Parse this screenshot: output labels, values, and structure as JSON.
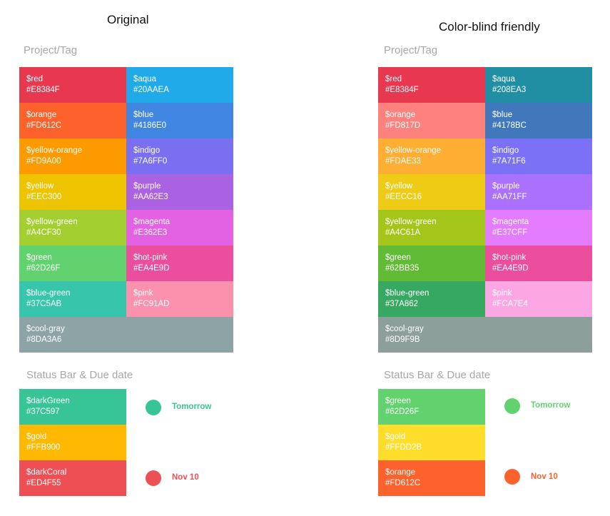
{
  "panels": [
    {
      "heading": "Original",
      "project_label": "Project/Tag",
      "project_colors": [
        {
          "name": "$red",
          "hex": "#E8384F",
          "color": "#E8384F"
        },
        {
          "name": "$aqua",
          "hex": "#20AAEA",
          "color": "#20AAEA"
        },
        {
          "name": "$orange",
          "hex": "#FD612C",
          "color": "#FD612C"
        },
        {
          "name": "$blue",
          "hex": "#4186E0",
          "color": "#4186E0"
        },
        {
          "name": "$yellow-orange",
          "hex": "#FD9A00",
          "color": "#FD9A00"
        },
        {
          "name": "$indigo",
          "hex": "#7A6FF0",
          "color": "#7A6FF0"
        },
        {
          "name": "$yellow",
          "hex": "#EEC300",
          "color": "#EEC300"
        },
        {
          "name": "$purple",
          "hex": "#AA62E3",
          "color": "#AA62E3"
        },
        {
          "name": "$yellow-green",
          "hex": "#A4CF30",
          "color": "#A4CF30"
        },
        {
          "name": "$magenta",
          "hex": "#E362E3",
          "color": "#E362E3"
        },
        {
          "name": "$green",
          "hex": "#62D26F",
          "color": "#62D26F"
        },
        {
          "name": "$hot-pink",
          "hex": "#EA4E9D",
          "color": "#EA4E9D"
        },
        {
          "name": "$blue-green",
          "hex": "#37C5AB",
          "color": "#37C5AB"
        },
        {
          "name": "$pink",
          "hex": "#FC91AD",
          "color": "#FC91AD"
        },
        {
          "name": "$cool-gray",
          "hex": "#8DA3A6",
          "color": "#8DA3A6"
        }
      ],
      "status_label": "Status Bar & Due date",
      "status_colors": [
        {
          "name": "$darkGreen",
          "hex": "#37C597",
          "color": "#37C597"
        },
        {
          "name": "$gold",
          "hex": "#FFB900",
          "color": "#FFB900"
        },
        {
          "name": "$darkCoral",
          "hex": "#ED4F55",
          "color": "#ED4F55"
        }
      ],
      "due_items": [
        {
          "label": "Tomorrow",
          "color": "#37C597"
        },
        {
          "label": "Nov 10",
          "color": "#ED4F55"
        }
      ]
    },
    {
      "heading": "Color-blind friendly",
      "project_label": "Project/Tag",
      "project_colors": [
        {
          "name": "$red",
          "hex": "#E8384F",
          "color": "#E8384F"
        },
        {
          "name": "$aqua",
          "hex": "#208EA3",
          "color": "#208EA3"
        },
        {
          "name": "$orange",
          "hex": "#FD817D",
          "color": "#FD817D"
        },
        {
          "name": "$blue",
          "hex": "#4178BC",
          "color": "#4178BC"
        },
        {
          "name": "$yellow-orange",
          "hex": "#FDAE33",
          "color": "#FDAE33"
        },
        {
          "name": "$indigo",
          "hex": "#7A71F6",
          "color": "#7A71F6"
        },
        {
          "name": "$yellow",
          "hex": "#EECC16",
          "color": "#EECC16"
        },
        {
          "name": "$purple",
          "hex": "#AA71FF",
          "color": "#AA71FF"
        },
        {
          "name": "$yellow-green",
          "hex": "#A4C61A",
          "color": "#A4C61A"
        },
        {
          "name": "$magenta",
          "hex": "#E37CFF",
          "color": "#E37CFF"
        },
        {
          "name": "$green",
          "hex": "#62BB35",
          "color": "#62BB35"
        },
        {
          "name": "$hot-pink",
          "hex": "#EA4E9D",
          "color": "#EA4E9D"
        },
        {
          "name": "$blue-green",
          "hex": "#37A862",
          "color": "#37A862"
        },
        {
          "name": "$pink",
          "hex": "#FCA7E4",
          "color": "#FCA7E4"
        },
        {
          "name": "$cool-gray",
          "hex": "#8D9F9B",
          "color": "#8D9F9B"
        }
      ],
      "status_label": "Status Bar & Due date",
      "status_colors": [
        {
          "name": "$green",
          "hex": "#62D26F",
          "color": "#62D26F"
        },
        {
          "name": "$gold",
          "hex": "#FFDD2B",
          "color": "#FFDD2B"
        },
        {
          "name": "$orange",
          "hex": "#FD612C",
          "color": "#FD612C"
        }
      ],
      "due_items": [
        {
          "label": "Tomorrow",
          "color": "#62D26F"
        },
        {
          "label": "Nov 10",
          "color": "#FD612C"
        }
      ]
    }
  ]
}
